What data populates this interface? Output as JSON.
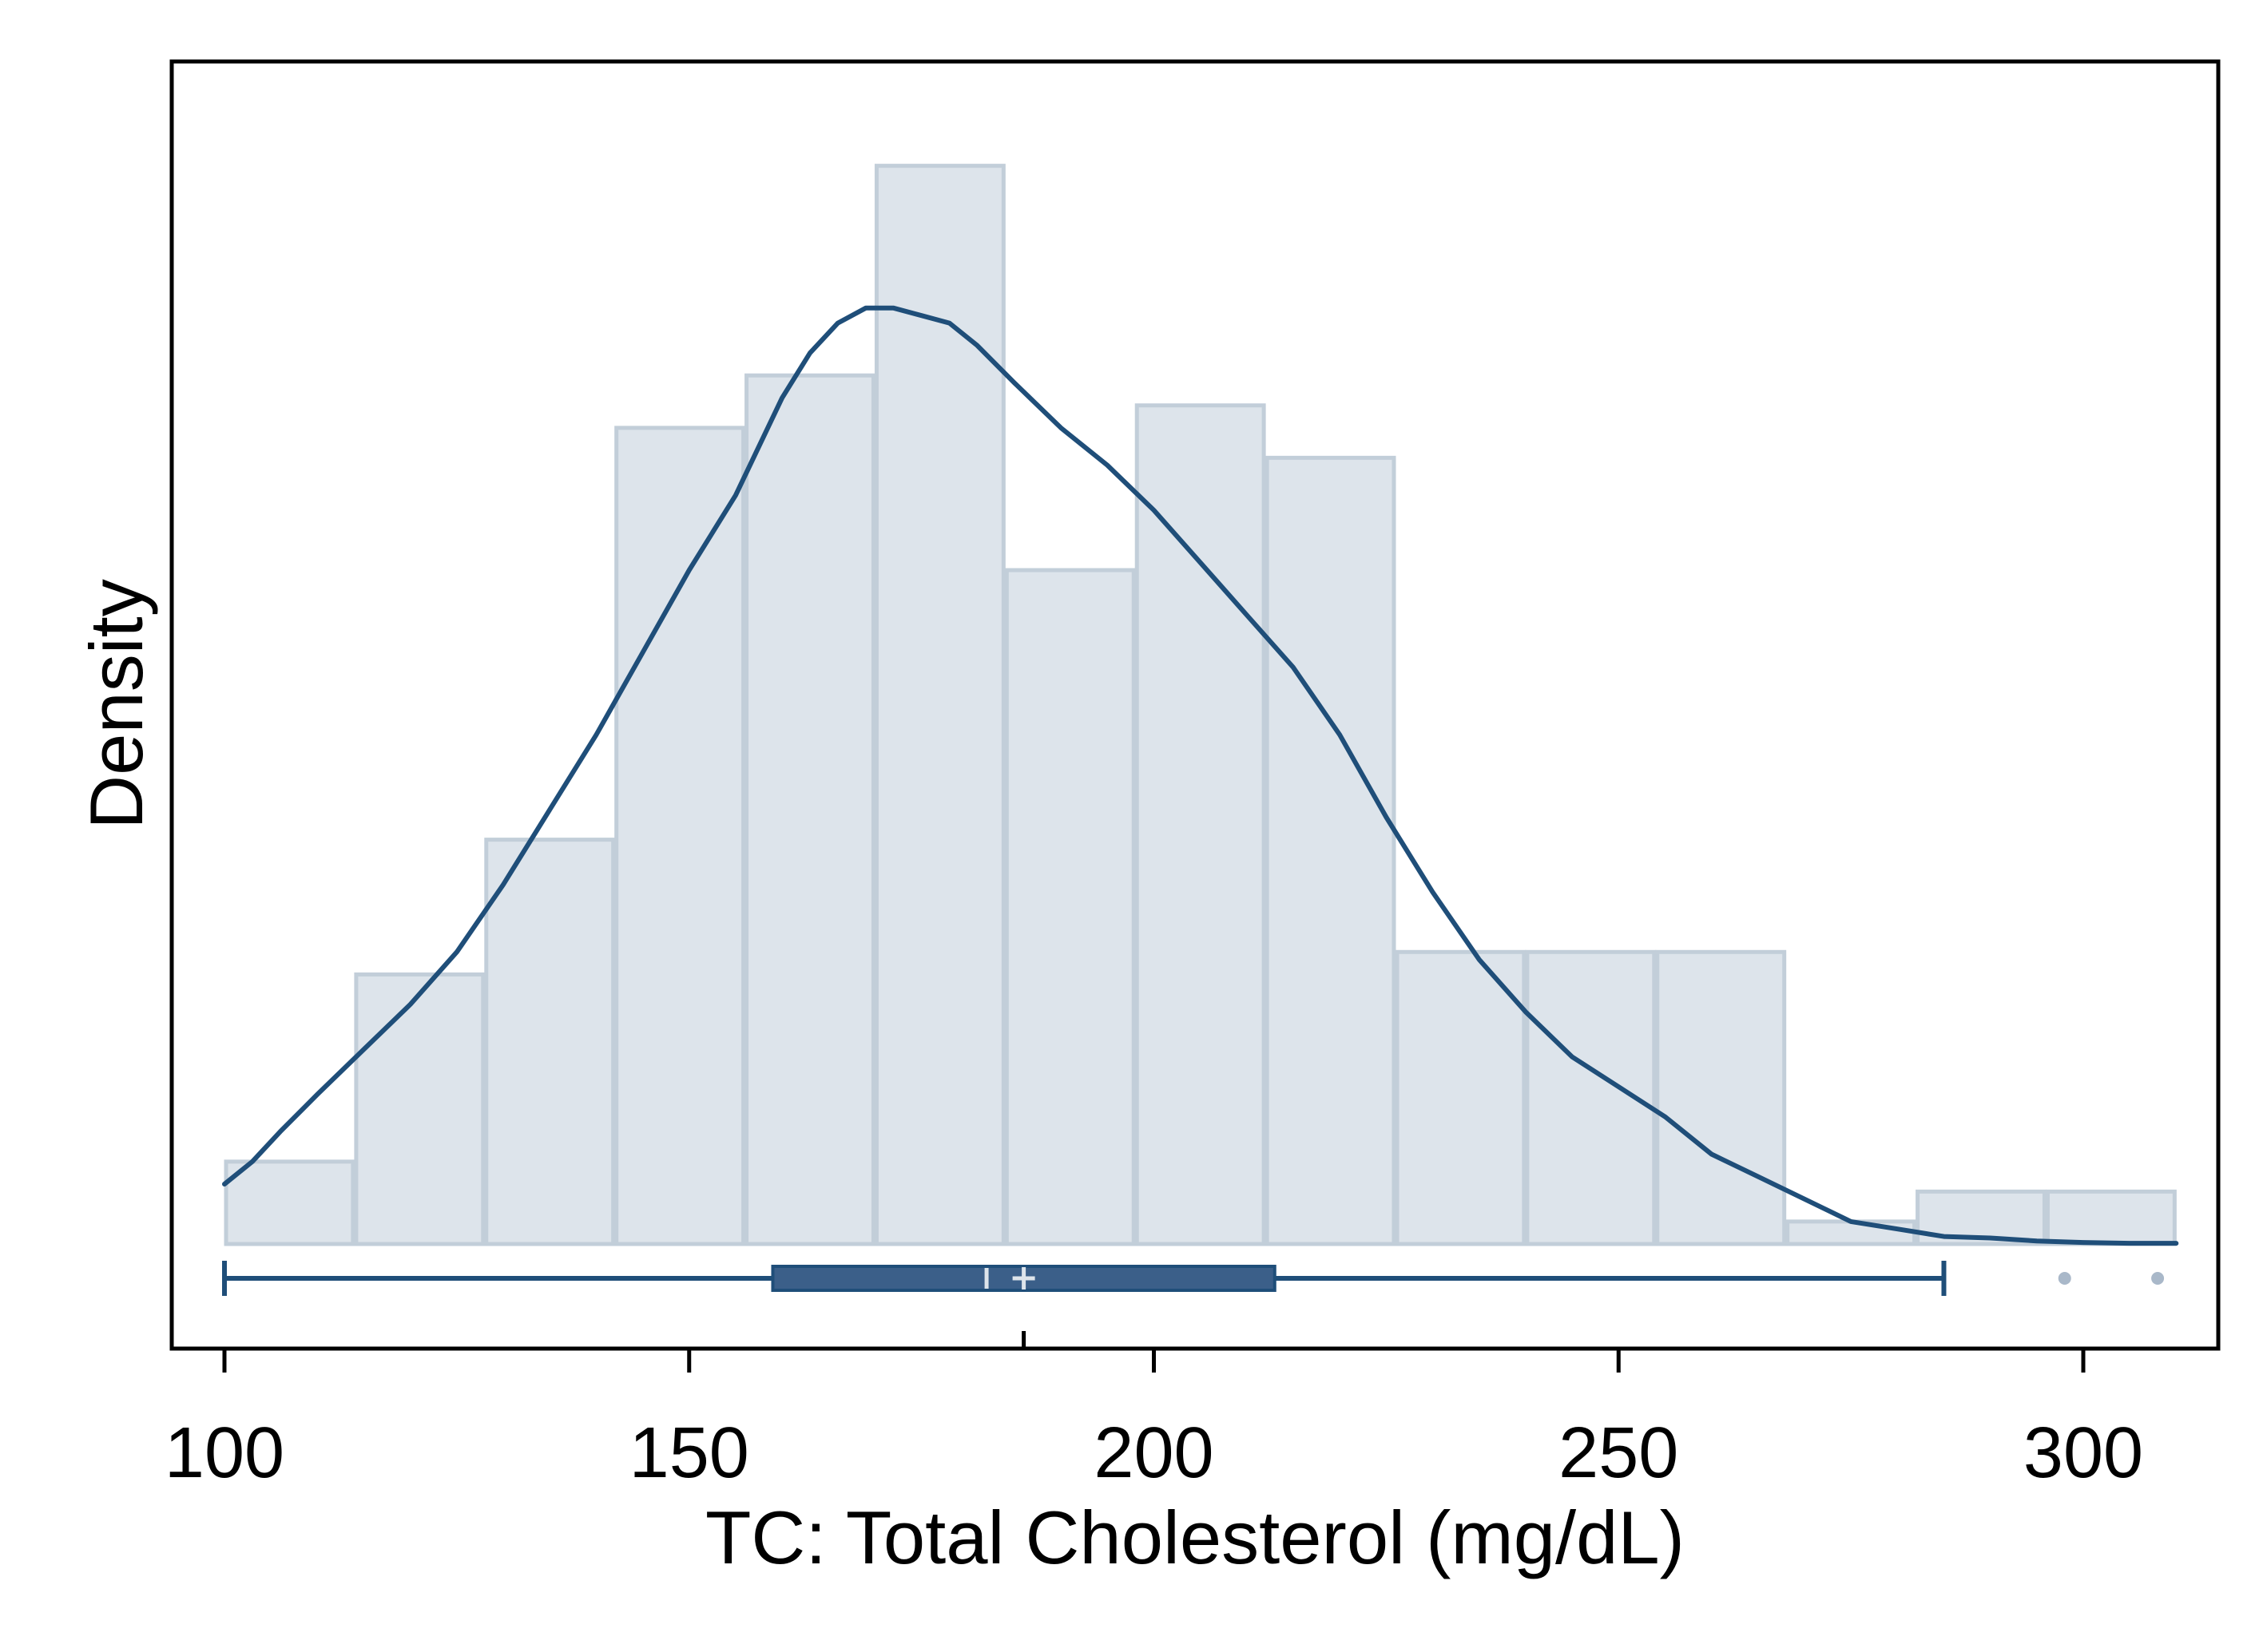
{
  "chart_data": {
    "type": "histogram",
    "title": "",
    "xlabel": "TC: Total Cholesterol (mg/dL)",
    "ylabel": "Density",
    "xlim": [
      94,
      315
    ],
    "ylim": [
      0,
      0.0151
    ],
    "xticks": [
      100,
      150,
      200,
      250,
      300
    ],
    "xtick_labels": [
      "100",
      "150",
      "200",
      "250",
      "300"
    ],
    "bin_edges": [
      100,
      114,
      128,
      142,
      156,
      170,
      184,
      198,
      212,
      226,
      240,
      254,
      268,
      282,
      296,
      310
    ],
    "densities": [
      0.0011,
      0.0036,
      0.0054,
      0.0109,
      0.0116,
      0.0144,
      0.009,
      0.0112,
      0.0105,
      0.0039,
      0.0039,
      0.0039,
      0.0003,
      0.0007,
      0.0007
    ],
    "kde": {
      "x": [
        100,
        103,
        106,
        110,
        115,
        120,
        125,
        130,
        135,
        140,
        145,
        150,
        155,
        160,
        163,
        166,
        169,
        172,
        175,
        178,
        181,
        185,
        190,
        195,
        200,
        205,
        210,
        215,
        220,
        225,
        230,
        235,
        240,
        245,
        250,
        255,
        260,
        265,
        270,
        275,
        280,
        285,
        290,
        295,
        300,
        305,
        310
      ],
      "y": [
        0.0008,
        0.0011,
        0.0015,
        0.002,
        0.0026,
        0.0032,
        0.0039,
        0.0048,
        0.0058,
        0.0068,
        0.0079,
        0.009,
        0.01,
        0.0113,
        0.0119,
        0.0123,
        0.0125,
        0.0125,
        0.0124,
        0.0123,
        0.012,
        0.0115,
        0.0109,
        0.0104,
        0.0098,
        0.0091,
        0.0084,
        0.0077,
        0.0068,
        0.0057,
        0.0047,
        0.0038,
        0.0031,
        0.0025,
        0.0021,
        0.0017,
        0.0012,
        0.0009,
        0.0006,
        0.0003,
        0.0002,
        0.0001,
        8e-05,
        4e-05,
        2e-05,
        1e-05,
        1e-05
      ]
    },
    "boxplot": {
      "whisker_low": 100,
      "q1": 159,
      "median": 182,
      "mean": 186,
      "q3": 213,
      "whisker_high": 285,
      "outliers": [
        298,
        308
      ]
    },
    "grid": false,
    "legend": "none",
    "colors": {
      "bar_fill": "#dde4eb",
      "bar_edge": "#c2ced9",
      "line": "#1f4e79",
      "box_fill": "#3b5f89",
      "outlier": "#a9b8c9",
      "frame": "#000000"
    }
  }
}
